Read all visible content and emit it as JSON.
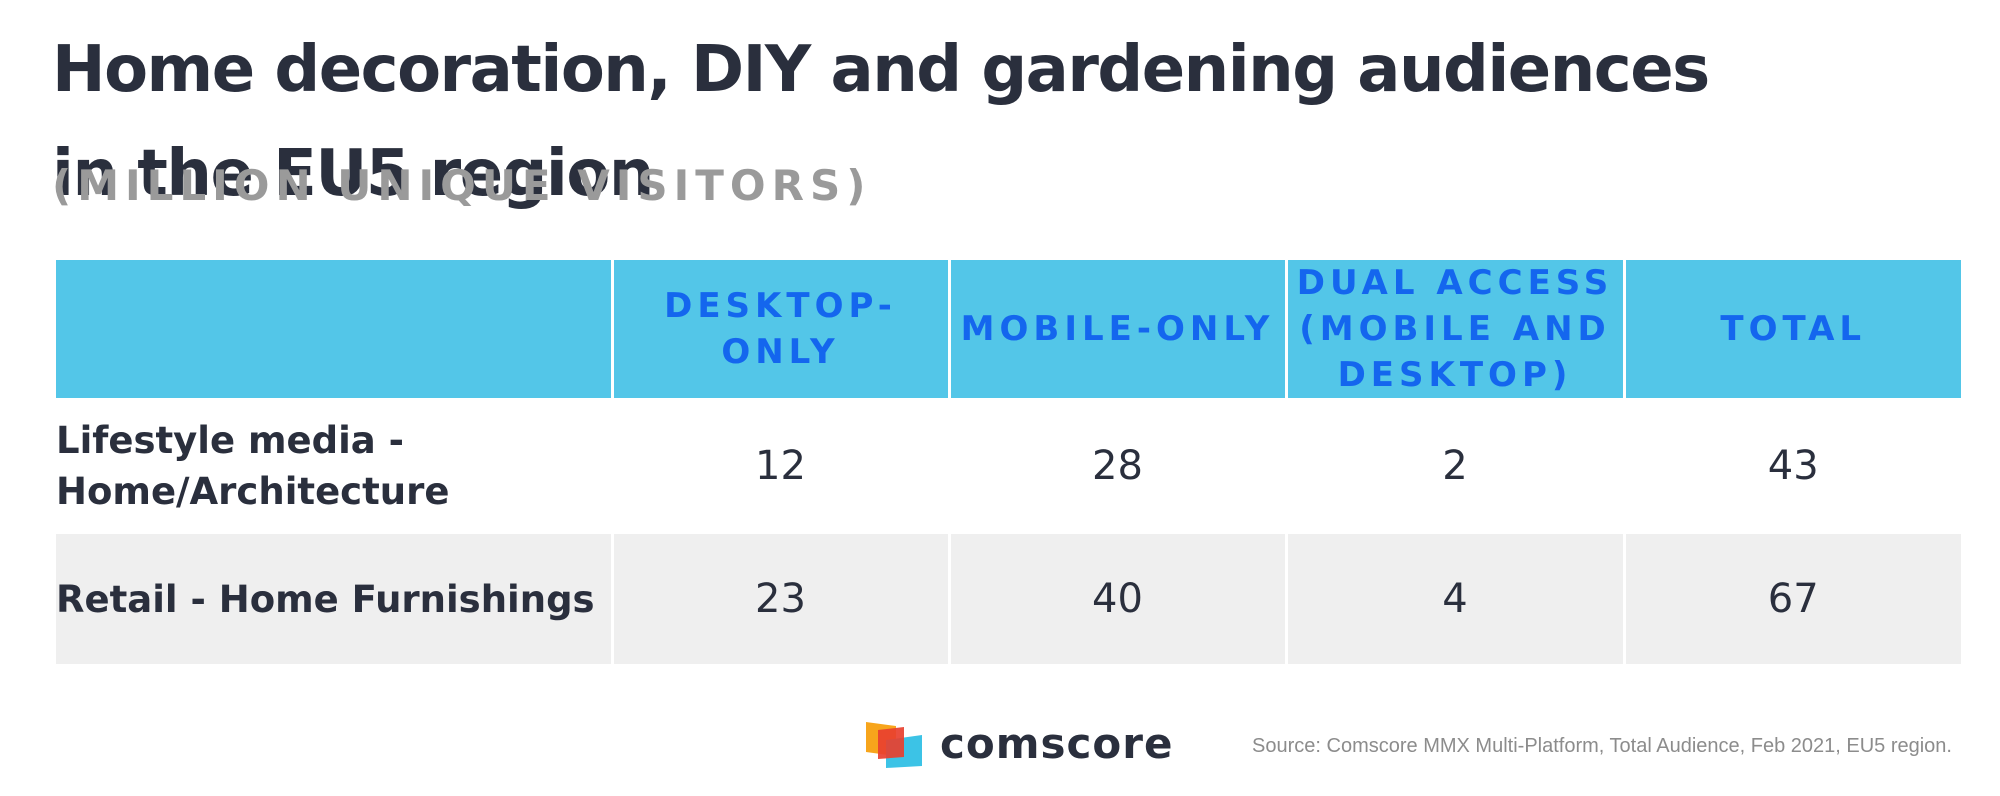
{
  "header": {
    "title": "Home decoration, DIY and gardening audiences in the EU5 region",
    "subtitle": "(MILLION UNIQUE VISITORS)"
  },
  "chart_data": {
    "type": "table",
    "title": "Home decoration, DIY and gardening audiences in the EU5 region",
    "subtitle": "(MILLION UNIQUE VISITORS)",
    "columns": [
      "",
      "DESKTOP-ONLY",
      "MOBILE-ONLY",
      "DUAL ACCESS (MOBILE AND DESKTOP)",
      "TOTAL"
    ],
    "rows": [
      {
        "label": "Lifestyle media - Home/Architecture",
        "values": [
          12,
          28,
          2,
          43
        ]
      },
      {
        "label": "Retail - Home Furnishings",
        "values": [
          23,
          40,
          4,
          67
        ]
      }
    ]
  },
  "colors": {
    "header_bg": "#53c6e8",
    "header_text": "#1466ee",
    "title_text": "#2a2f3d",
    "subtitle_text": "#9a9a9a",
    "alt_row_bg": "#efefef"
  },
  "footer": {
    "logo_text": "comscore",
    "logo_icon": "comscore-logo-icon",
    "source": "Source: Comscore MMX Multi-Platform, Total Audience, Feb 2021, EU5 region."
  }
}
